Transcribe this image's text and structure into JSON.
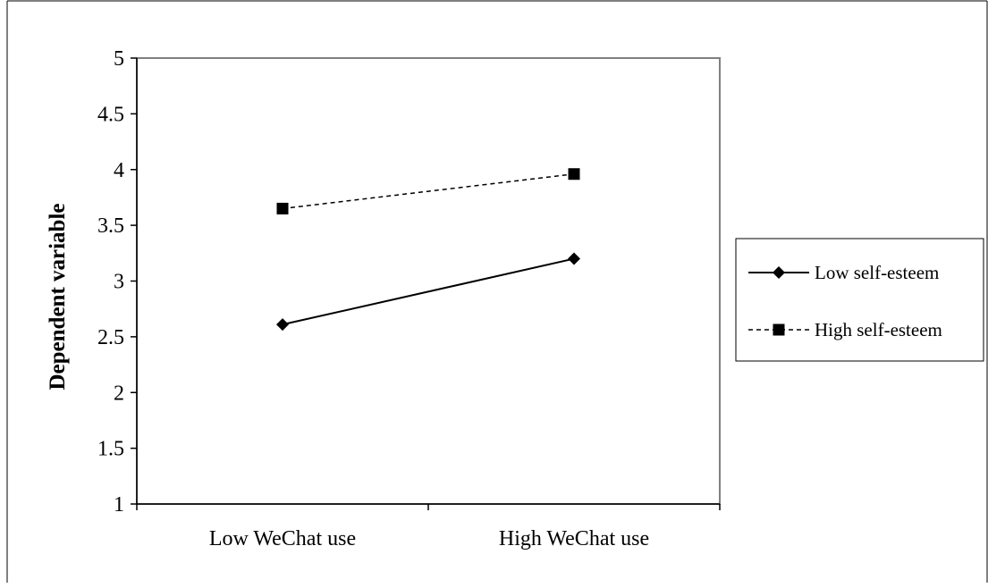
{
  "chart_data": {
    "type": "line",
    "categories": [
      "Low WeChat use",
      "High WeChat use"
    ],
    "ylabel": "Dependent variable",
    "xlabel": "",
    "ylim": [
      1,
      5
    ],
    "yticks": [
      "1",
      "1.5",
      "2",
      "2.5",
      "3",
      "3.5",
      "4",
      "4.5",
      "5"
    ],
    "grid": false,
    "legend_position": "right",
    "series": [
      {
        "name": "Low self-esteem",
        "values": [
          2.61,
          3.2
        ],
        "line_style": "solid",
        "marker": "diamond",
        "color": "#000000"
      },
      {
        "name": "High self-esteem",
        "values": [
          3.65,
          3.96
        ],
        "line_style": "dashed",
        "marker": "square",
        "color": "#000000"
      }
    ]
  }
}
